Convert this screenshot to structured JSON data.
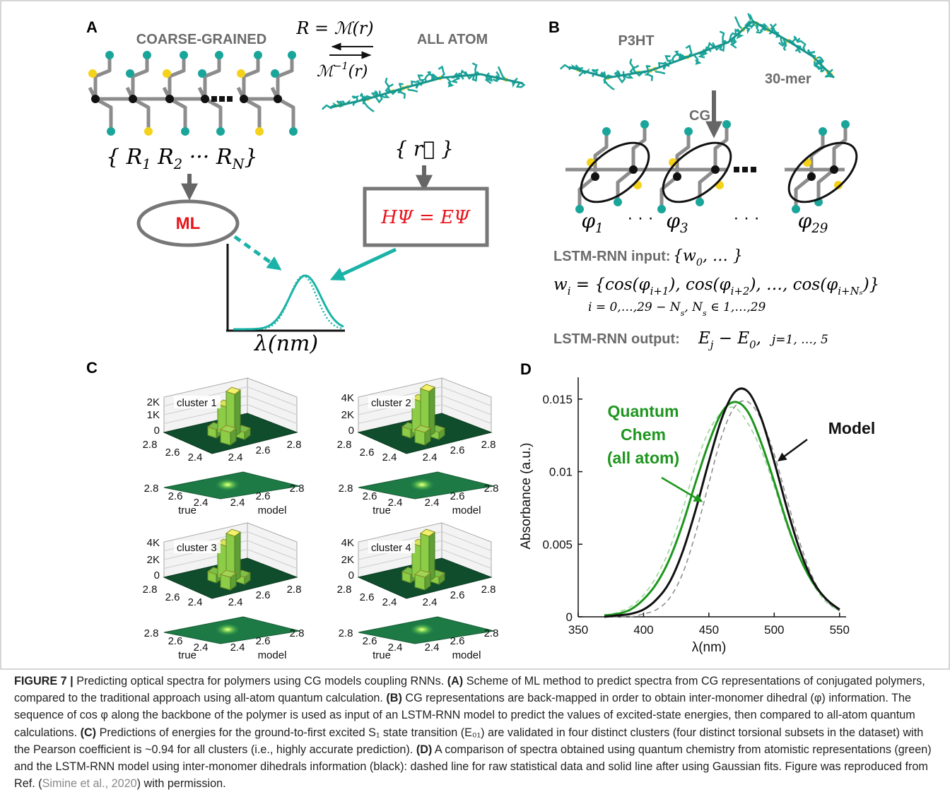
{
  "figure": {
    "panel_a": {
      "letter": "A",
      "cg_label": "COARSE-GRAINED",
      "aa_label": "ALL ATOM",
      "map_forward": "R = ℳ(r)",
      "map_inverse": [
        {
          "t": "ℳ",
          "sup": "−1"
        },
        {
          "t": "(r)"
        }
      ],
      "cg_coords": [
        {
          "t": "{ R",
          "sub": "1"
        },
        {
          "t": "  R",
          "sub": "2"
        },
        {
          "t": "  ···  R",
          "sub": "N"
        },
        {
          "t": "}"
        }
      ],
      "aa_coords": "{ r⃗ }",
      "ml": "ML",
      "schrodinger": "HΨ = EΨ",
      "x_axis": "λ(nm)"
    },
    "panel_b": {
      "letter": "B",
      "molecule": "P3HT",
      "length": "30-mer",
      "cg": "CG",
      "phi_1": [
        {
          "t": "φ",
          "sub": "1"
        }
      ],
      "dots_1": "· · ·",
      "phi_3": [
        {
          "t": "φ",
          "sub": "3"
        }
      ],
      "dots_2": "· · ·",
      "phi_29": [
        {
          "t": "φ",
          "sub": "29"
        }
      ],
      "input_label": "LSTM-RNN input:",
      "input_value": [
        {
          "t": "{w",
          "sub": "0"
        },
        {
          "t": ", … }"
        }
      ],
      "w_def": [
        {
          "t": "w",
          "sub": "i"
        },
        {
          "t": " = {cos(φ",
          "sub": "i+1"
        },
        {
          "t": "), cos(φ",
          "sub": "i+2"
        },
        {
          "t": "), …, cos(φ",
          "sub": "i+Nₛ"
        },
        {
          "t": ")}"
        }
      ],
      "index_def": [
        {
          "t": "i = 0,…,29 − N",
          "sub": "s"
        },
        {
          "t": ", N",
          "sub": "s"
        },
        {
          "t": " ∈ 1,…,29"
        }
      ],
      "output_label": "LSTM-RNN output:",
      "output_value": [
        {
          "t": "E",
          "sub": "j"
        },
        {
          "t": " − E",
          "sub": "0"
        },
        {
          "t": ","
        }
      ],
      "output_range": "j=1, …, 5"
    },
    "panel_c": {
      "letter": "C",
      "clusters": [
        {
          "label": "cluster 1",
          "z_ticks": [
            "2K",
            "1K",
            "0"
          ],
          "bar_true_ticks": [
            2.8,
            2.6,
            2.4
          ],
          "bar_model_ticks": [
            2.4,
            2.6,
            2.8
          ],
          "map_true_ticks": [
            2.8,
            2.6,
            2.4
          ],
          "map_model_ticks": [
            2.4,
            2.6,
            2.8
          ],
          "true_label": "true",
          "model_label": "model"
        },
        {
          "label": "cluster 2",
          "z_ticks": [
            "4K",
            "2K",
            "0"
          ],
          "bar_true_ticks": [
            2.8,
            2.6,
            2.4
          ],
          "bar_model_ticks": [
            2.4,
            2.6,
            2.8
          ],
          "map_true_ticks": [
            2.8,
            2.6,
            2.4
          ],
          "map_model_ticks": [
            2.4,
            2.6,
            2.8
          ],
          "true_label": "true",
          "model_label": "model"
        },
        {
          "label": "cluster 3",
          "z_ticks": [
            "4K",
            "2K",
            "0"
          ],
          "bar_true_ticks": [
            2.8,
            2.6,
            2.4
          ],
          "bar_model_ticks": [
            2.4,
            2.6,
            2.8
          ],
          "map_true_ticks": [
            2.8,
            2.6,
            2.4
          ],
          "map_model_ticks": [
            2.4,
            2.6,
            2.8
          ],
          "true_label": "true",
          "model_label": "model"
        },
        {
          "label": "cluster 4",
          "z_ticks": [
            "4K",
            "2K",
            "0"
          ],
          "bar_true_ticks": [
            2.8,
            2.6,
            2.4
          ],
          "bar_model_ticks": [
            2.4,
            2.6,
            2.8
          ],
          "map_true_ticks": [
            2.8,
            2.6,
            2.4
          ],
          "map_model_ticks": [
            2.4,
            2.6,
            2.8
          ],
          "true_label": "true",
          "model_label": "model"
        }
      ]
    },
    "panel_d": {
      "letter": "D",
      "chart_data": {
        "type": "line",
        "x_label": "λ(nm)",
        "y_label": "Absorbance (a.u.)",
        "xlim": [
          350,
          555
        ],
        "ylim": [
          0,
          0.0165
        ],
        "xticks": [
          350,
          400,
          450,
          500,
          550
        ],
        "yticks": [
          0,
          0.005,
          0.01,
          0.015
        ],
        "x": [
          370,
          380,
          390,
          400,
          410,
          420,
          430,
          440,
          450,
          460,
          470,
          480,
          490,
          500,
          510,
          520,
          530,
          540,
          550
        ],
        "series": [
          {
            "color": "#8fd68f",
            "dashed": true,
            "values": [
              0.0001,
              0.0003,
              0.0007,
              0.0015,
              0.0028,
              0.0047,
              0.0074,
              0.0105,
              0.0128,
              0.0141,
              0.0144,
              0.0133,
              0.0115,
              0.009,
              0.0062,
              0.0039,
              0.0022,
              0.001,
              0.0004
            ]
          },
          {
            "color": "#888888",
            "dashed": true,
            "values": [
              0,
              0,
              0,
              0.0002,
              0.0005,
              0.0013,
              0.003,
              0.0058,
              0.0092,
              0.0125,
              0.0145,
              0.0148,
              0.0136,
              0.0112,
              0.008,
              0.005,
              0.0026,
              0.0011,
              0.0004
            ]
          },
          {
            "color": "#1e961e",
            "dashed": false,
            "values": [
              0.0001,
              0.0002,
              0.0005,
              0.0012,
              0.0023,
              0.004,
              0.0064,
              0.0093,
              0.012,
              0.0141,
              0.0148,
              0.0141,
              0.012,
              0.0093,
              0.0064,
              0.004,
              0.0023,
              0.0012,
              0.0005
            ]
          },
          {
            "color": "#111111",
            "dashed": false,
            "values": [
              0,
              0.0001,
              0.0002,
              0.0005,
              0.0012,
              0.0024,
              0.0045,
              0.0074,
              0.0107,
              0.0137,
              0.0155,
              0.0155,
              0.0137,
              0.0107,
              0.0074,
              0.0045,
              0.0024,
              0.0012,
              0.0005
            ]
          }
        ],
        "annotations": [
          {
            "lines": [
              "Quantum",
              "Chem",
              "(all atom)"
            ],
            "color": "#1e961e"
          },
          {
            "lines": [
              "Model"
            ],
            "color": "#111111"
          }
        ]
      }
    }
  },
  "caption": {
    "label": "FIGURE 7 |",
    "intro": "Predicting optical spectra for polymers using CG models coupling RNNs.",
    "parts": [
      {
        "tag": "(A)",
        "text": "Scheme of ML method to predict spectra from CG representations of conjugated polymers, compared to the traditional approach using all-atom quantum calculation."
      },
      {
        "tag": "(B)",
        "text": "CG representations are back-mapped in order to obtain inter-monomer dihedral (φ) information. The sequence of cos φ along the backbone of the polymer is used as input of an LSTM-RNN model to predict the values of excited-state energies, then compared to all-atom quantum calculations."
      },
      {
        "tag": "(C)",
        "text": "Predictions of energies for the ground-to-first excited S₁ state transition (E₀₁) are validated in four distinct clusters (four distinct torsional subsets in the dataset) with the Pearson coefficient is ~0.94 for all clusters (i.e., highly accurate prediction)."
      },
      {
        "tag": "(D)",
        "text": "A comparison of spectra obtained using quantum chemistry from atomistic representations (green) and the LSTM-RNN model using inter-monomer dihedrals information (black): dashed line for raw statistical data and solid line after using Gaussian fits."
      }
    ],
    "closing": "Figure was reproduced from Ref. (",
    "citation": "Simine et al., 2020",
    "end": ") with permission."
  }
}
